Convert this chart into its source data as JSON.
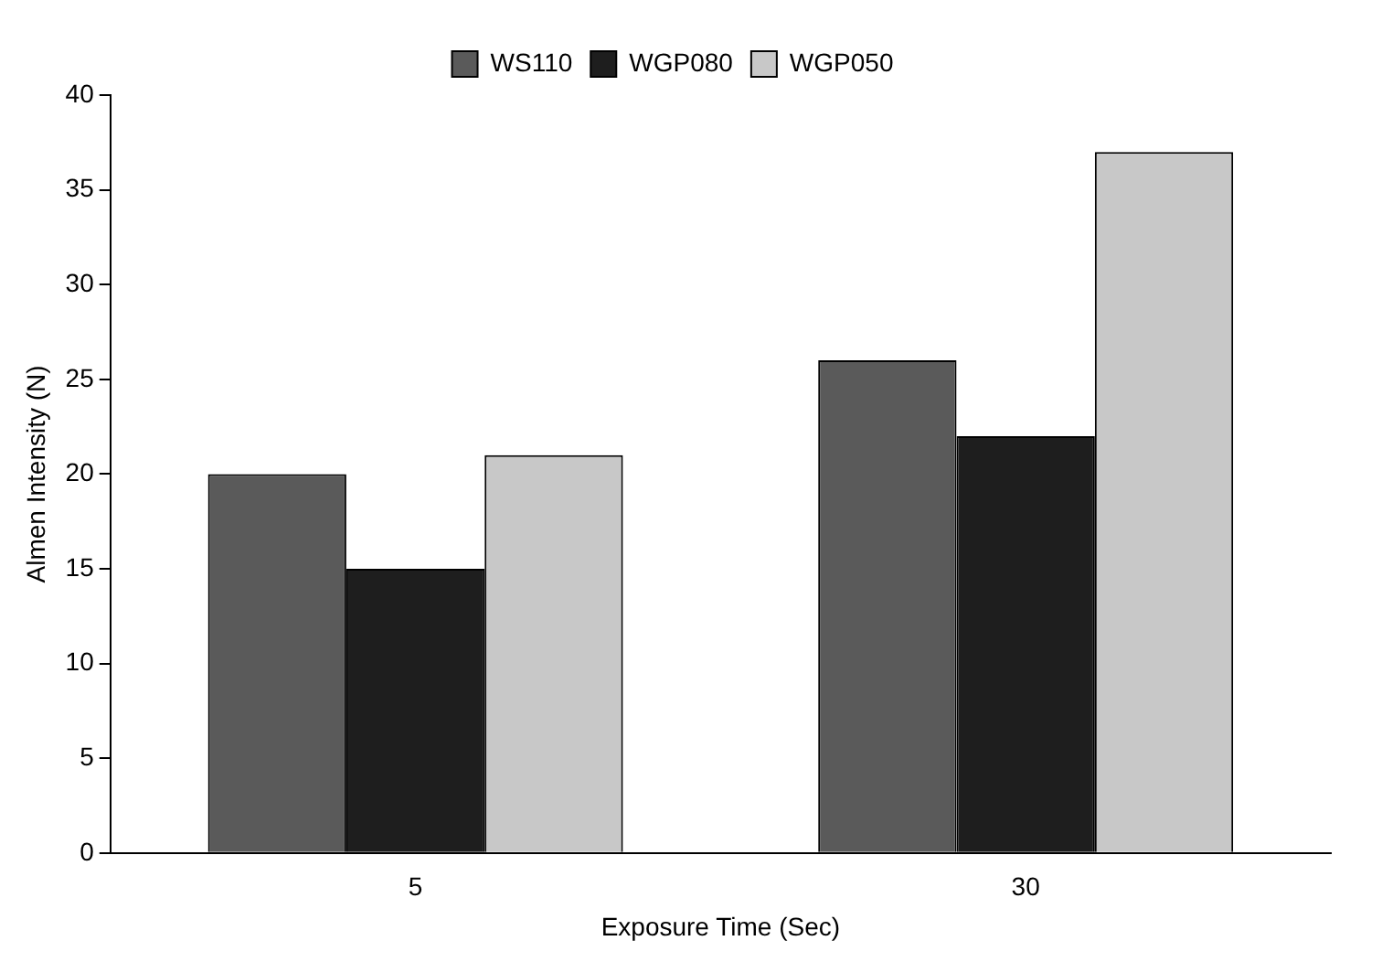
{
  "chart_data": {
    "type": "bar",
    "xlabel": "Exposure Time (Sec)",
    "ylabel": "Almen Intensity (N)",
    "categories": [
      "5",
      "30"
    ],
    "series": [
      {
        "name": "WS110",
        "color": "#5a5a5a",
        "values": [
          20,
          26
        ]
      },
      {
        "name": "WGP080",
        "color": "#1e1e1e",
        "values": [
          15,
          22
        ]
      },
      {
        "name": "WGP050",
        "color": "#c8c8c8",
        "values": [
          21,
          37
        ]
      }
    ],
    "ylim": [
      0,
      40
    ],
    "yticks": [
      0,
      5,
      10,
      15,
      20,
      25,
      30,
      35,
      40
    ],
    "grid": false,
    "legend": "top"
  }
}
